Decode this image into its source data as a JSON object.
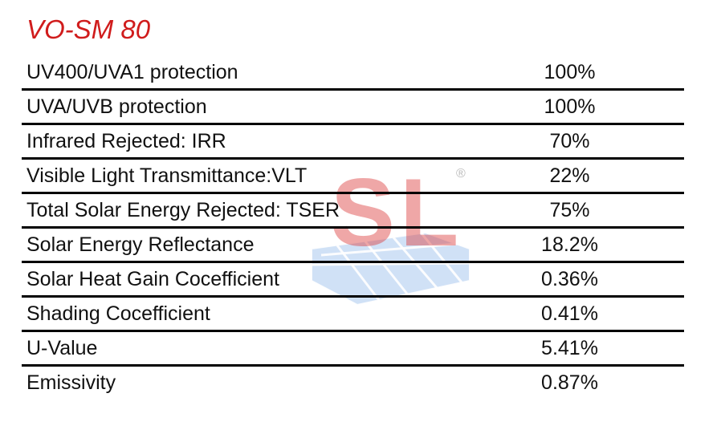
{
  "header": {
    "title": "VO-SM 80"
  },
  "watermark": {
    "text": "SL",
    "mark": "®"
  },
  "table": {
    "rows": [
      [
        "UV400/UVA1 protection",
        "100%"
      ],
      [
        "UVA/UVB protection",
        "100%"
      ],
      [
        "Infrared Rejected: IRR",
        "70%"
      ],
      [
        "Visible Light Transmittance:VLT",
        "22%"
      ],
      [
        "Total Solar Energy Rejected: TSER",
        "75%"
      ],
      [
        "Solar Energy Reflectance",
        "18.2%"
      ],
      [
        "Solar Heat Gain Cocefficient",
        "0.36%"
      ],
      [
        "Shading Cocefficient",
        "0.41%"
      ],
      [
        "U-Value",
        "5.41%"
      ],
      [
        "Emissivity",
        "0.87%"
      ]
    ]
  }
}
